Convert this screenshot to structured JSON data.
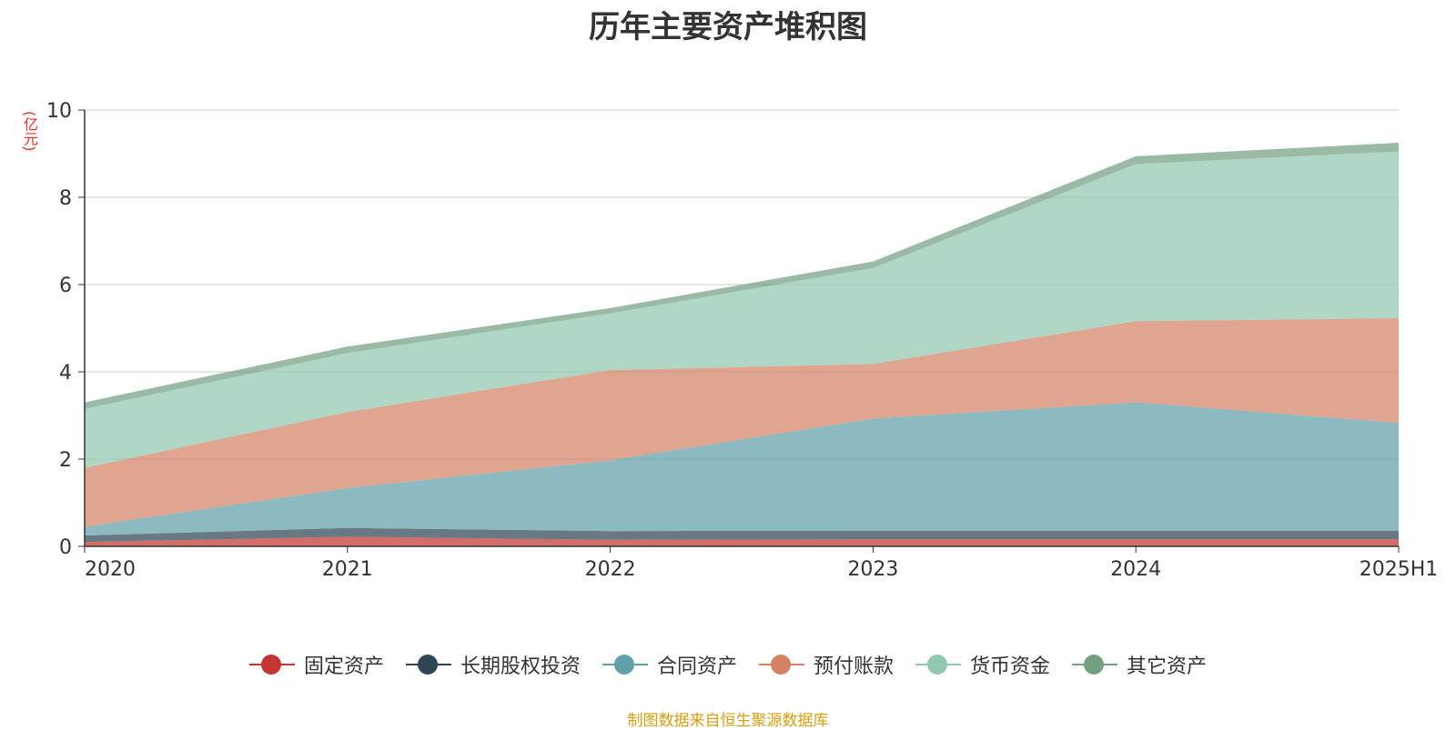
{
  "chart_data": {
    "type": "area",
    "stacked": true,
    "title": "历年主要资产堆积图",
    "ylabel": "(亿元)",
    "xlabel": "",
    "categories": [
      "2020",
      "2021",
      "2022",
      "2023",
      "2024",
      "2025H1"
    ],
    "ylim": [
      0,
      10
    ],
    "yticks": [
      0,
      2,
      4,
      6,
      8,
      10
    ],
    "grid": true,
    "legend_position": "bottom",
    "series": [
      {
        "name": "固定资产",
        "color": "#c23531",
        "values": [
          0.1,
          0.22,
          0.15,
          0.16,
          0.16,
          0.16
        ]
      },
      {
        "name": "长期股权投资",
        "color": "#2f4554",
        "values": [
          0.15,
          0.2,
          0.2,
          0.2,
          0.2,
          0.2
        ]
      },
      {
        "name": "合同资产",
        "color": "#61a0a8",
        "values": [
          0.2,
          0.92,
          1.62,
          2.57,
          2.94,
          2.47
        ]
      },
      {
        "name": "预付账款",
        "color": "#d48265",
        "values": [
          1.35,
          1.74,
          2.07,
          1.25,
          1.86,
          2.4
        ]
      },
      {
        "name": "货币资金",
        "color": "#91c7ae",
        "values": [
          1.35,
          1.35,
          1.3,
          2.2,
          3.6,
          3.82
        ]
      },
      {
        "name": "其它资产",
        "color": "#749f83",
        "values": [
          0.15,
          0.15,
          0.12,
          0.15,
          0.18,
          0.2
        ]
      }
    ]
  },
  "source_text": "制图数据来自恒生聚源数据库"
}
